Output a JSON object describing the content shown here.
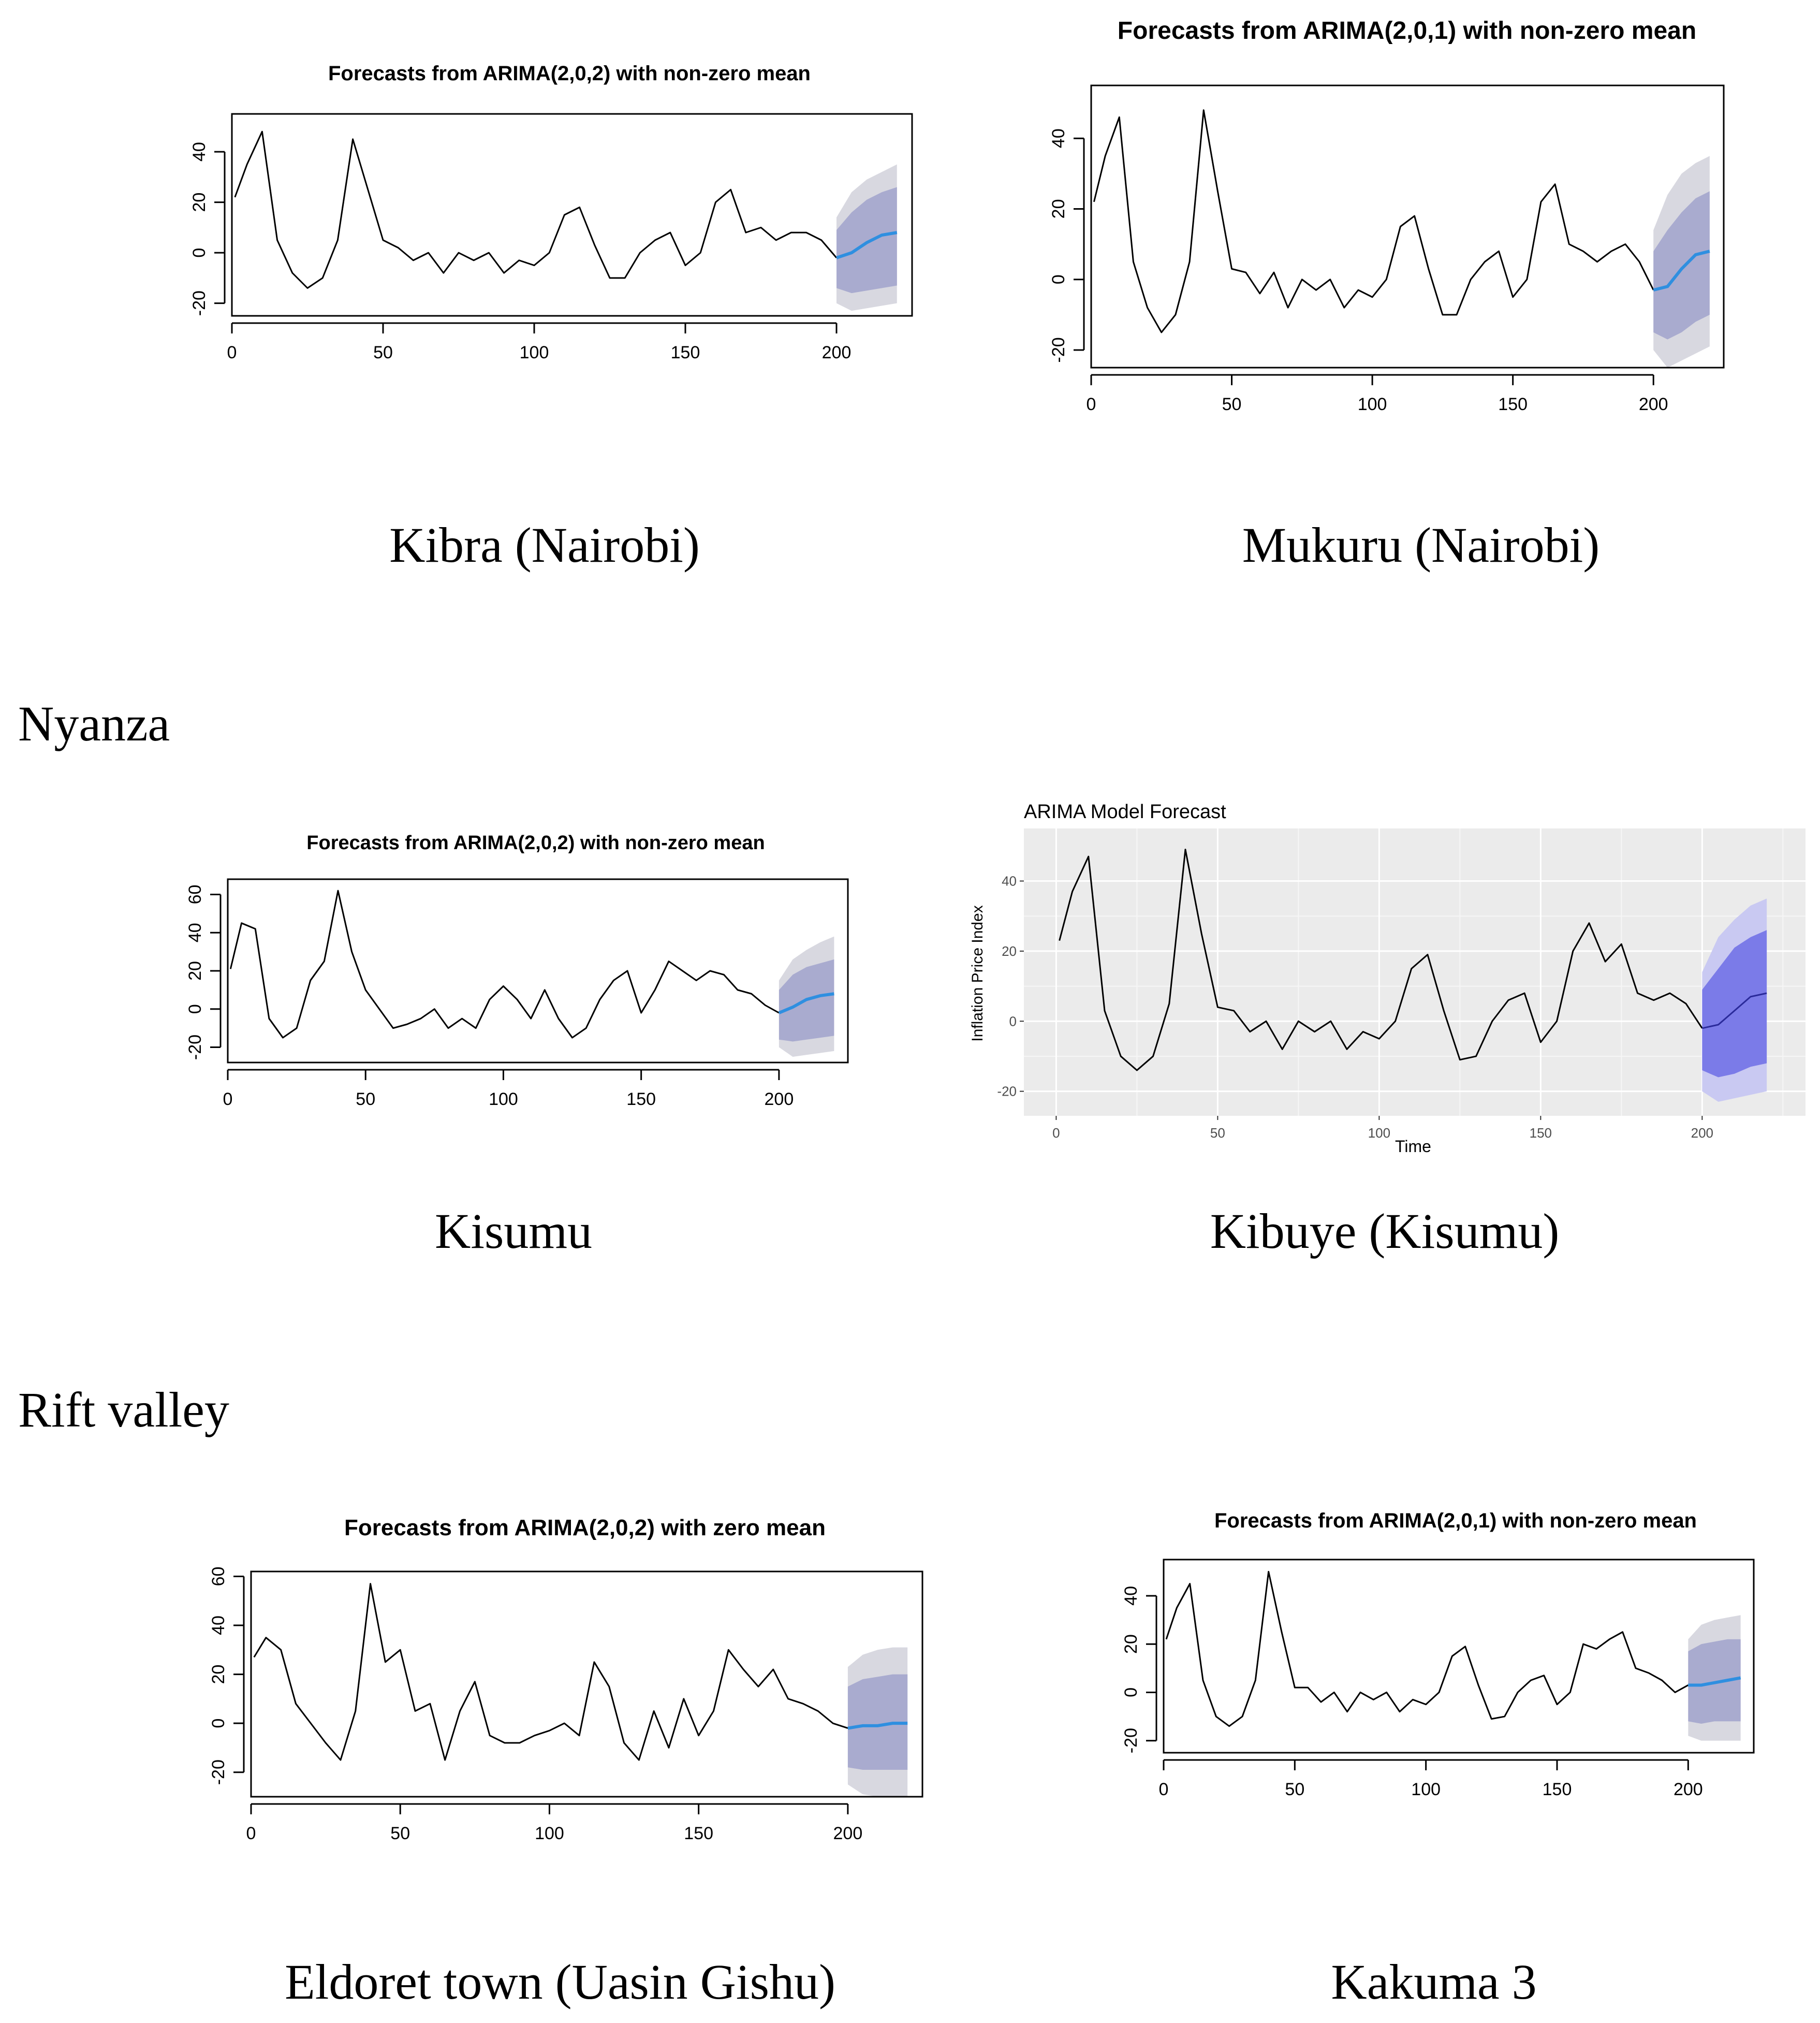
{
  "sections": {
    "nyanza": "Nyanza",
    "rift": "Rift valley"
  },
  "charts": [
    {
      "id": "kibra",
      "caption": "Kibra (Nairobi)",
      "title": "Forecasts from ARIMA(2,0,2) with non-zero mean"
    },
    {
      "id": "mukuru",
      "caption": "Mukuru (Nairobi)",
      "title": "Forecasts from ARIMA(2,0,1) with non-zero mean"
    },
    {
      "id": "kisumu",
      "caption": "Kisumu",
      "title": "Forecasts from ARIMA(2,0,2) with non-zero mean"
    },
    {
      "id": "kibuye",
      "caption": "Kibuye (Kisumu)",
      "title": "ARIMA Model Forecast",
      "xlabel": "Time",
      "ylabel": "Inflation Price Index"
    },
    {
      "id": "eldoret",
      "caption": "Eldoret town (Uasin Gishu)",
      "title": "Forecasts from ARIMA(2,0,2) with zero mean"
    },
    {
      "id": "kakuma",
      "caption": "Kakuma 3",
      "title": "Forecasts from ARIMA(2,0,1) with non-zero mean"
    }
  ],
  "chart_data": [
    {
      "type": "line",
      "id": "kibra",
      "title": "Forecasts from ARIMA(2,0,2) with non-zero mean",
      "xlabel": "",
      "ylabel": "",
      "xlim": [
        0,
        225
      ],
      "ylim": [
        -25,
        55
      ],
      "xticks": [
        0,
        50,
        100,
        150,
        200
      ],
      "yticks": [
        -20,
        0,
        20,
        40
      ],
      "x": [
        1,
        5,
        10,
        15,
        20,
        25,
        30,
        35,
        40,
        45,
        50,
        55,
        60,
        65,
        70,
        75,
        80,
        85,
        90,
        95,
        100,
        105,
        110,
        115,
        120,
        125,
        130,
        135,
        140,
        145,
        150,
        155,
        160,
        165,
        170,
        175,
        180,
        185,
        190,
        195,
        200
      ],
      "y": [
        22,
        35,
        48,
        5,
        -8,
        -14,
        -10,
        5,
        45,
        25,
        5,
        2,
        -3,
        0,
        -8,
        0,
        -3,
        0,
        -8,
        -3,
        -5,
        0,
        15,
        18,
        3,
        -10,
        -10,
        0,
        5,
        8,
        -5,
        0,
        20,
        25,
        8,
        10,
        5,
        8,
        8,
        5,
        -2
      ],
      "forecast": {
        "x": [
          200,
          205,
          210,
          215,
          220
        ],
        "mean": [
          -2,
          0,
          4,
          7,
          8
        ],
        "lo80": [
          -14,
          -16,
          -15,
          -14,
          -13
        ],
        "hi80": [
          9,
          16,
          21,
          24,
          26
        ],
        "lo95": [
          -20,
          -23,
          -22,
          -21,
          -20
        ],
        "hi95": [
          14,
          24,
          29,
          32,
          35
        ]
      },
      "grid": false,
      "legend": "none"
    },
    {
      "type": "line",
      "id": "mukuru",
      "title": "Forecasts from ARIMA(2,0,1) with non-zero mean",
      "xlabel": "",
      "ylabel": "",
      "xlim": [
        0,
        225
      ],
      "ylim": [
        -25,
        55
      ],
      "xticks": [
        0,
        50,
        100,
        150,
        200
      ],
      "yticks": [
        -20,
        0,
        20,
        40
      ],
      "x": [
        1,
        5,
        10,
        15,
        20,
        25,
        30,
        35,
        40,
        45,
        50,
        55,
        60,
        65,
        70,
        75,
        80,
        85,
        90,
        95,
        100,
        105,
        110,
        115,
        120,
        125,
        130,
        135,
        140,
        145,
        150,
        155,
        160,
        165,
        170,
        175,
        180,
        185,
        190,
        195,
        200
      ],
      "y": [
        22,
        35,
        46,
        5,
        -8,
        -15,
        -10,
        5,
        48,
        25,
        3,
        2,
        -4,
        2,
        -8,
        0,
        -3,
        0,
        -8,
        -3,
        -5,
        0,
        15,
        18,
        3,
        -10,
        -10,
        0,
        5,
        8,
        -5,
        0,
        22,
        27,
        10,
        8,
        5,
        8,
        10,
        5,
        -3
      ],
      "forecast": {
        "x": [
          200,
          205,
          210,
          215,
          220
        ],
        "mean": [
          -3,
          -2,
          3,
          7,
          8
        ],
        "lo80": [
          -15,
          -17,
          -15,
          -12,
          -10
        ],
        "hi80": [
          8,
          14,
          19,
          23,
          25
        ],
        "lo95": [
          -20,
          -25,
          -23,
          -21,
          -19
        ],
        "hi95": [
          14,
          24,
          30,
          33,
          35
        ]
      },
      "grid": false,
      "legend": "none"
    },
    {
      "type": "line",
      "id": "kisumu",
      "title": "Forecasts from ARIMA(2,0,2) with non-zero mean",
      "xlabel": "",
      "ylabel": "",
      "xlim": [
        0,
        225
      ],
      "ylim": [
        -28,
        68
      ],
      "xticks": [
        0,
        50,
        100,
        150,
        200
      ],
      "yticks": [
        -20,
        0,
        20,
        40,
        60
      ],
      "x": [
        1,
        5,
        10,
        15,
        20,
        25,
        30,
        35,
        40,
        45,
        50,
        55,
        60,
        65,
        70,
        75,
        80,
        85,
        90,
        95,
        100,
        105,
        110,
        115,
        120,
        125,
        130,
        135,
        140,
        145,
        150,
        155,
        160,
        165,
        170,
        175,
        180,
        185,
        190,
        195,
        200
      ],
      "y": [
        21,
        45,
        42,
        -5,
        -15,
        -10,
        15,
        25,
        62,
        30,
        10,
        0,
        -10,
        -8,
        -5,
        0,
        -10,
        -5,
        -10,
        5,
        12,
        5,
        -5,
        10,
        -5,
        -15,
        -10,
        5,
        15,
        20,
        -2,
        10,
        25,
        20,
        15,
        20,
        18,
        10,
        8,
        2,
        -2
      ],
      "forecast": {
        "x": [
          200,
          205,
          210,
          215,
          220
        ],
        "mean": [
          -2,
          1,
          5,
          7,
          8
        ],
        "lo80": [
          -16,
          -17,
          -16,
          -15,
          -14
        ],
        "hi80": [
          10,
          18,
          22,
          24,
          26
        ],
        "lo95": [
          -20,
          -25,
          -24,
          -23,
          -22
        ],
        "hi95": [
          15,
          26,
          31,
          35,
          38
        ]
      },
      "grid": false,
      "legend": "none"
    },
    {
      "type": "line",
      "id": "kibuye",
      "title": "ARIMA Model Forecast",
      "xlabel": "Time",
      "ylabel": "Inflation Price Index",
      "xlim": [
        -10,
        232
      ],
      "ylim": [
        -27,
        55
      ],
      "xticks": [
        0,
        50,
        100,
        150,
        200
      ],
      "yticks": [
        -20,
        0,
        20,
        40
      ],
      "x": [
        1,
        5,
        10,
        15,
        20,
        25,
        30,
        35,
        40,
        45,
        50,
        55,
        60,
        65,
        70,
        75,
        80,
        85,
        90,
        95,
        100,
        105,
        110,
        115,
        120,
        125,
        130,
        135,
        140,
        145,
        150,
        155,
        160,
        165,
        170,
        175,
        180,
        185,
        190,
        195,
        200
      ],
      "y": [
        23,
        37,
        47,
        3,
        -10,
        -14,
        -10,
        5,
        49,
        25,
        4,
        3,
        -3,
        0,
        -8,
        0,
        -3,
        0,
        -8,
        -3,
        -5,
        0,
        15,
        19,
        3,
        -11,
        -10,
        0,
        6,
        8,
        -6,
        0,
        20,
        28,
        17,
        22,
        8,
        6,
        8,
        5,
        -2
      ],
      "forecast": {
        "x": [
          200,
          205,
          210,
          215,
          220
        ],
        "mean": [
          -2,
          -1,
          3,
          7,
          8
        ],
        "lo80": [
          -14,
          -16,
          -15,
          -13,
          -12
        ],
        "hi80": [
          9,
          15,
          21,
          24,
          26
        ],
        "lo95": [
          -20,
          -23,
          -22,
          -21,
          -20
        ],
        "hi95": [
          14,
          24,
          29,
          33,
          35
        ]
      },
      "grid": true,
      "legend": "none"
    },
    {
      "type": "line",
      "id": "eldoret",
      "title": "Forecasts from ARIMA(2,0,2) with zero mean",
      "xlabel": "",
      "ylabel": "",
      "xlim": [
        0,
        225
      ],
      "ylim": [
        -30,
        62
      ],
      "xticks": [
        0,
        50,
        100,
        150,
        200
      ],
      "yticks": [
        -20,
        0,
        20,
        40,
        60
      ],
      "x": [
        1,
        5,
        10,
        15,
        20,
        25,
        30,
        35,
        40,
        45,
        50,
        55,
        60,
        65,
        70,
        75,
        80,
        85,
        90,
        95,
        100,
        105,
        110,
        115,
        120,
        125,
        130,
        135,
        140,
        145,
        150,
        155,
        160,
        165,
        170,
        175,
        180,
        185,
        190,
        195,
        200
      ],
      "y": [
        27,
        35,
        30,
        8,
        0,
        -8,
        -15,
        5,
        57,
        25,
        30,
        5,
        8,
        -15,
        5,
        17,
        -5,
        -8,
        -8,
        -5,
        -3,
        0,
        -5,
        25,
        15,
        -8,
        -15,
        5,
        -10,
        10,
        -5,
        5,
        30,
        22,
        15,
        22,
        10,
        8,
        5,
        0,
        -2
      ],
      "forecast": {
        "x": [
          200,
          205,
          210,
          215,
          220
        ],
        "mean": [
          -2,
          -1,
          -1,
          0,
          0
        ],
        "lo80": [
          -18,
          -19,
          -19,
          -19,
          -19
        ],
        "hi80": [
          15,
          18,
          19,
          20,
          20
        ],
        "lo95": [
          -25,
          -29,
          -30,
          -30,
          -30
        ],
        "hi95": [
          23,
          28,
          30,
          31,
          31
        ]
      },
      "grid": false,
      "legend": "none"
    },
    {
      "type": "line",
      "id": "kakuma",
      "title": "Forecasts from ARIMA(2,0,1) with non-zero mean",
      "xlabel": "",
      "ylabel": "",
      "xlim": [
        0,
        225
      ],
      "ylim": [
        -25,
        55
      ],
      "xticks": [
        0,
        50,
        100,
        150,
        200
      ],
      "yticks": [
        -20,
        0,
        20,
        40
      ],
      "x": [
        1,
        5,
        10,
        15,
        20,
        25,
        30,
        35,
        40,
        45,
        50,
        55,
        60,
        65,
        70,
        75,
        80,
        85,
        90,
        95,
        100,
        105,
        110,
        115,
        120,
        125,
        130,
        135,
        140,
        145,
        150,
        155,
        160,
        165,
        170,
        175,
        180,
        185,
        190,
        195,
        200
      ],
      "y": [
        22,
        35,
        45,
        5,
        -10,
        -14,
        -10,
        5,
        50,
        25,
        2,
        2,
        -4,
        0,
        -8,
        0,
        -3,
        0,
        -8,
        -3,
        -5,
        0,
        15,
        19,
        3,
        -11,
        -10,
        0,
        5,
        7,
        -5,
        0,
        20,
        18,
        22,
        25,
        10,
        8,
        5,
        0,
        3
      ],
      "forecast": {
        "x": [
          200,
          205,
          210,
          215,
          220
        ],
        "mean": [
          3,
          3,
          4,
          5,
          6
        ],
        "lo80": [
          -12,
          -13,
          -12,
          -12,
          -12
        ],
        "hi80": [
          17,
          20,
          21,
          22,
          22
        ],
        "lo95": [
          -18,
          -20,
          -20,
          -20,
          -20
        ],
        "hi95": [
          22,
          28,
          30,
          31,
          32
        ]
      },
      "grid": false,
      "legend": "none"
    }
  ]
}
